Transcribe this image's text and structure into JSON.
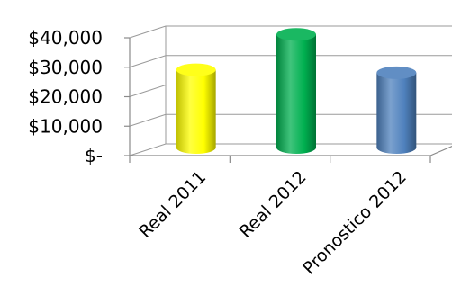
{
  "chart_data": {
    "type": "bar",
    "style": "3d-cylinder",
    "categories": [
      "Real 2011",
      "Real 2012",
      "Pronostico 2012"
    ],
    "values": [
      27000,
      39000,
      26000
    ],
    "bar_colors": [
      "#FFFF00",
      "#00B050",
      "#4F81BD"
    ],
    "ylim": [
      0,
      40000
    ],
    "y_ticks": [
      0,
      10000,
      20000,
      30000,
      40000
    ],
    "y_tick_labels": [
      "$-",
      "$10,000",
      "$20,000",
      "$30,000",
      "$40,000"
    ],
    "title": "",
    "xlabel": "",
    "ylabel": "",
    "grid": true,
    "legend": "none"
  }
}
